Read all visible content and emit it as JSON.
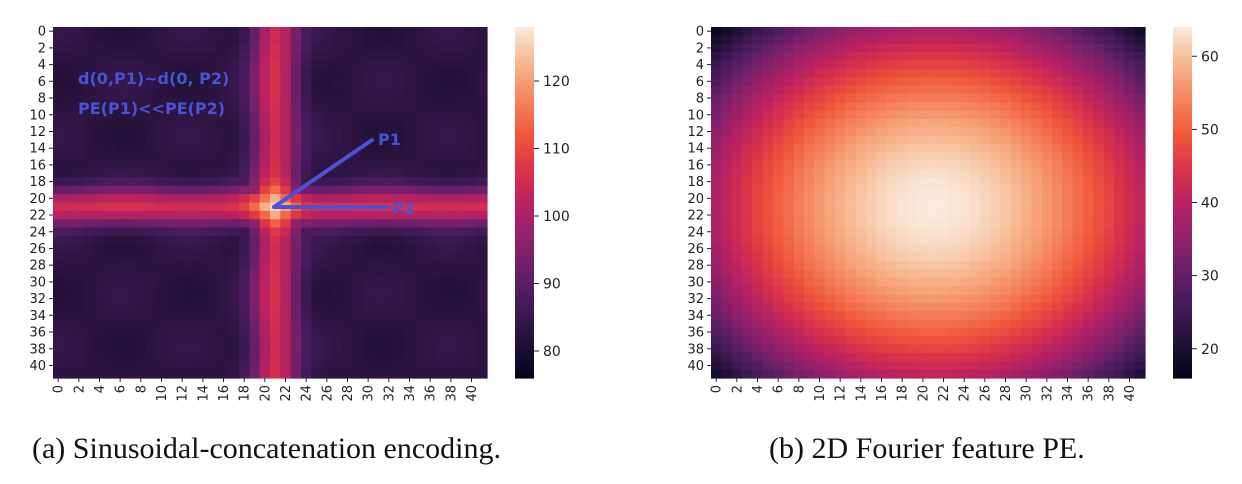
{
  "colors": {
    "annotation": "#4a52d6"
  },
  "chart_data": [
    {
      "type": "heatmap",
      "title": "",
      "caption": "(a) Sinusoidal-concatenation encoding.",
      "n": 42,
      "x_ticks": [
        "0",
        "2",
        "4",
        "6",
        "8",
        "10",
        "12",
        "14",
        "16",
        "18",
        "20",
        "22",
        "24",
        "26",
        "28",
        "30",
        "32",
        "34",
        "36",
        "38",
        "40"
      ],
      "y_ticks": [
        "0",
        "2",
        "4",
        "6",
        "8",
        "10",
        "12",
        "14",
        "16",
        "18",
        "20",
        "22",
        "24",
        "26",
        "28",
        "30",
        "32",
        "34",
        "36",
        "38",
        "40"
      ],
      "colorbar": {
        "vmin": 76,
        "vmax": 128,
        "ticks": [
          80,
          90,
          100,
          110,
          120
        ]
      },
      "description_model": "cross pattern centered at (21,21): background ~83, bands along row 21 and column 21 ~100-108, peak ~128 at center",
      "center": [
        21,
        21
      ],
      "background": 83,
      "band_peak": 108,
      "center_peak": 128,
      "annotations": {
        "line1": "d(0,P1)~d(0, P2)",
        "line2": "PE(P1)<<PE(P2)",
        "p1": "P1",
        "p2": "P2"
      }
    },
    {
      "type": "heatmap",
      "title": "",
      "caption": "(b) 2D Fourier feature PE.",
      "n": 42,
      "x_ticks": [
        "0",
        "2",
        "4",
        "6",
        "8",
        "10",
        "12",
        "14",
        "16",
        "18",
        "20",
        "22",
        "24",
        "26",
        "28",
        "30",
        "32",
        "34",
        "36",
        "38",
        "40"
      ],
      "y_ticks": [
        "0",
        "2",
        "4",
        "6",
        "8",
        "10",
        "12",
        "14",
        "16",
        "18",
        "20",
        "22",
        "24",
        "26",
        "28",
        "30",
        "32",
        "34",
        "36",
        "38",
        "40"
      ],
      "colorbar": {
        "vmin": 16,
        "vmax": 64,
        "ticks": [
          20,
          30,
          40,
          50,
          60
        ]
      },
      "description_model": "radial blob centered at (21,21): peak ~64 at center, falling to ~17 at corners",
      "center": [
        21,
        21
      ],
      "peak": 64,
      "corner": 17
    }
  ]
}
